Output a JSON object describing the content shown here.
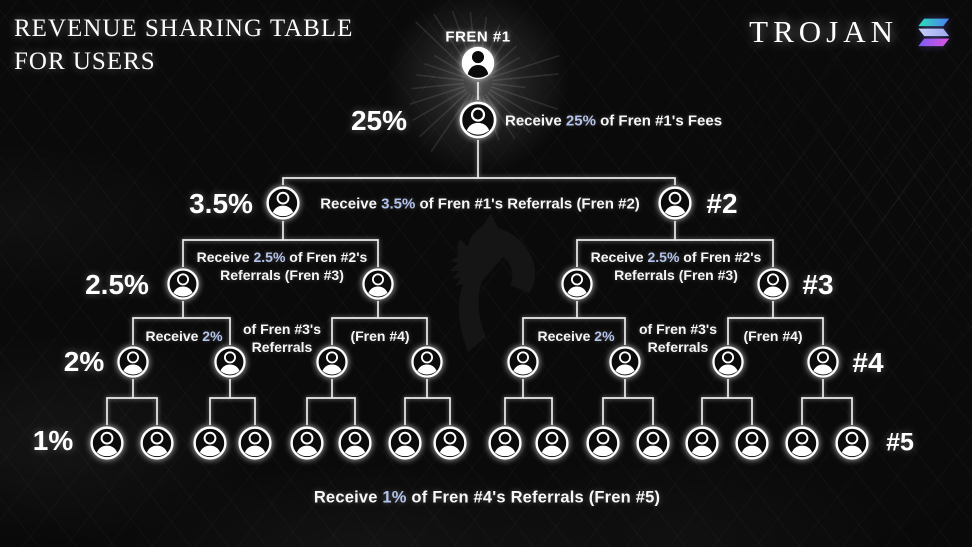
{
  "title": {
    "line1": "REVENUE SHARING TABLE",
    "line2": "FOR USERS"
  },
  "brand": {
    "name": "TROJAN",
    "logo": "solana-logo"
  },
  "root": {
    "label": "FREN #1"
  },
  "levels": [
    {
      "percent": "25%",
      "desc": {
        "prefix": "Receive ",
        "value": "25%",
        "suffix": " of Fren #1's Fees"
      }
    },
    {
      "percent": "3.5%",
      "tier": "#2",
      "desc": {
        "prefix": "Receive ",
        "value": "3.5%",
        "suffix": " of Fren #1's Referrals (Fren #2)"
      }
    },
    {
      "percent": "2.5%",
      "tier": "#3",
      "desc": {
        "prefix": "Receive ",
        "value": "2.5%",
        "suffix": " of Fren #2's Referrals (Fren #3)"
      }
    },
    {
      "percent": "2%",
      "tier": "#4",
      "desc": {
        "prefix": "Receive ",
        "value": "2%"
      },
      "desc_mid": "of Fren #3's Referrals",
      "desc_right": "(Fren #4)"
    },
    {
      "percent": "1%",
      "tier": "#5"
    }
  ],
  "footer": {
    "prefix": "Receive ",
    "value": "1%",
    "suffix": " of Fren #4's Referrals (Fren #5)"
  },
  "colors": {
    "background": "#0a0a0a",
    "text": "#f5f5f5",
    "highlight": "#b3c3ec",
    "line": "#ececec",
    "solana_teal": "#2be0b8",
    "solana_blue": "#4e7df2",
    "solana_pale": "#b9c3f7",
    "solana_violet": "#7a5cf5",
    "solana_magenta": "#e054e0"
  },
  "icons": {
    "root_node": "person-filled-circle-icon",
    "node": "person-circle-icon",
    "brand": "solana-logo-icon",
    "watermark": "trojan-horse-watermark"
  }
}
